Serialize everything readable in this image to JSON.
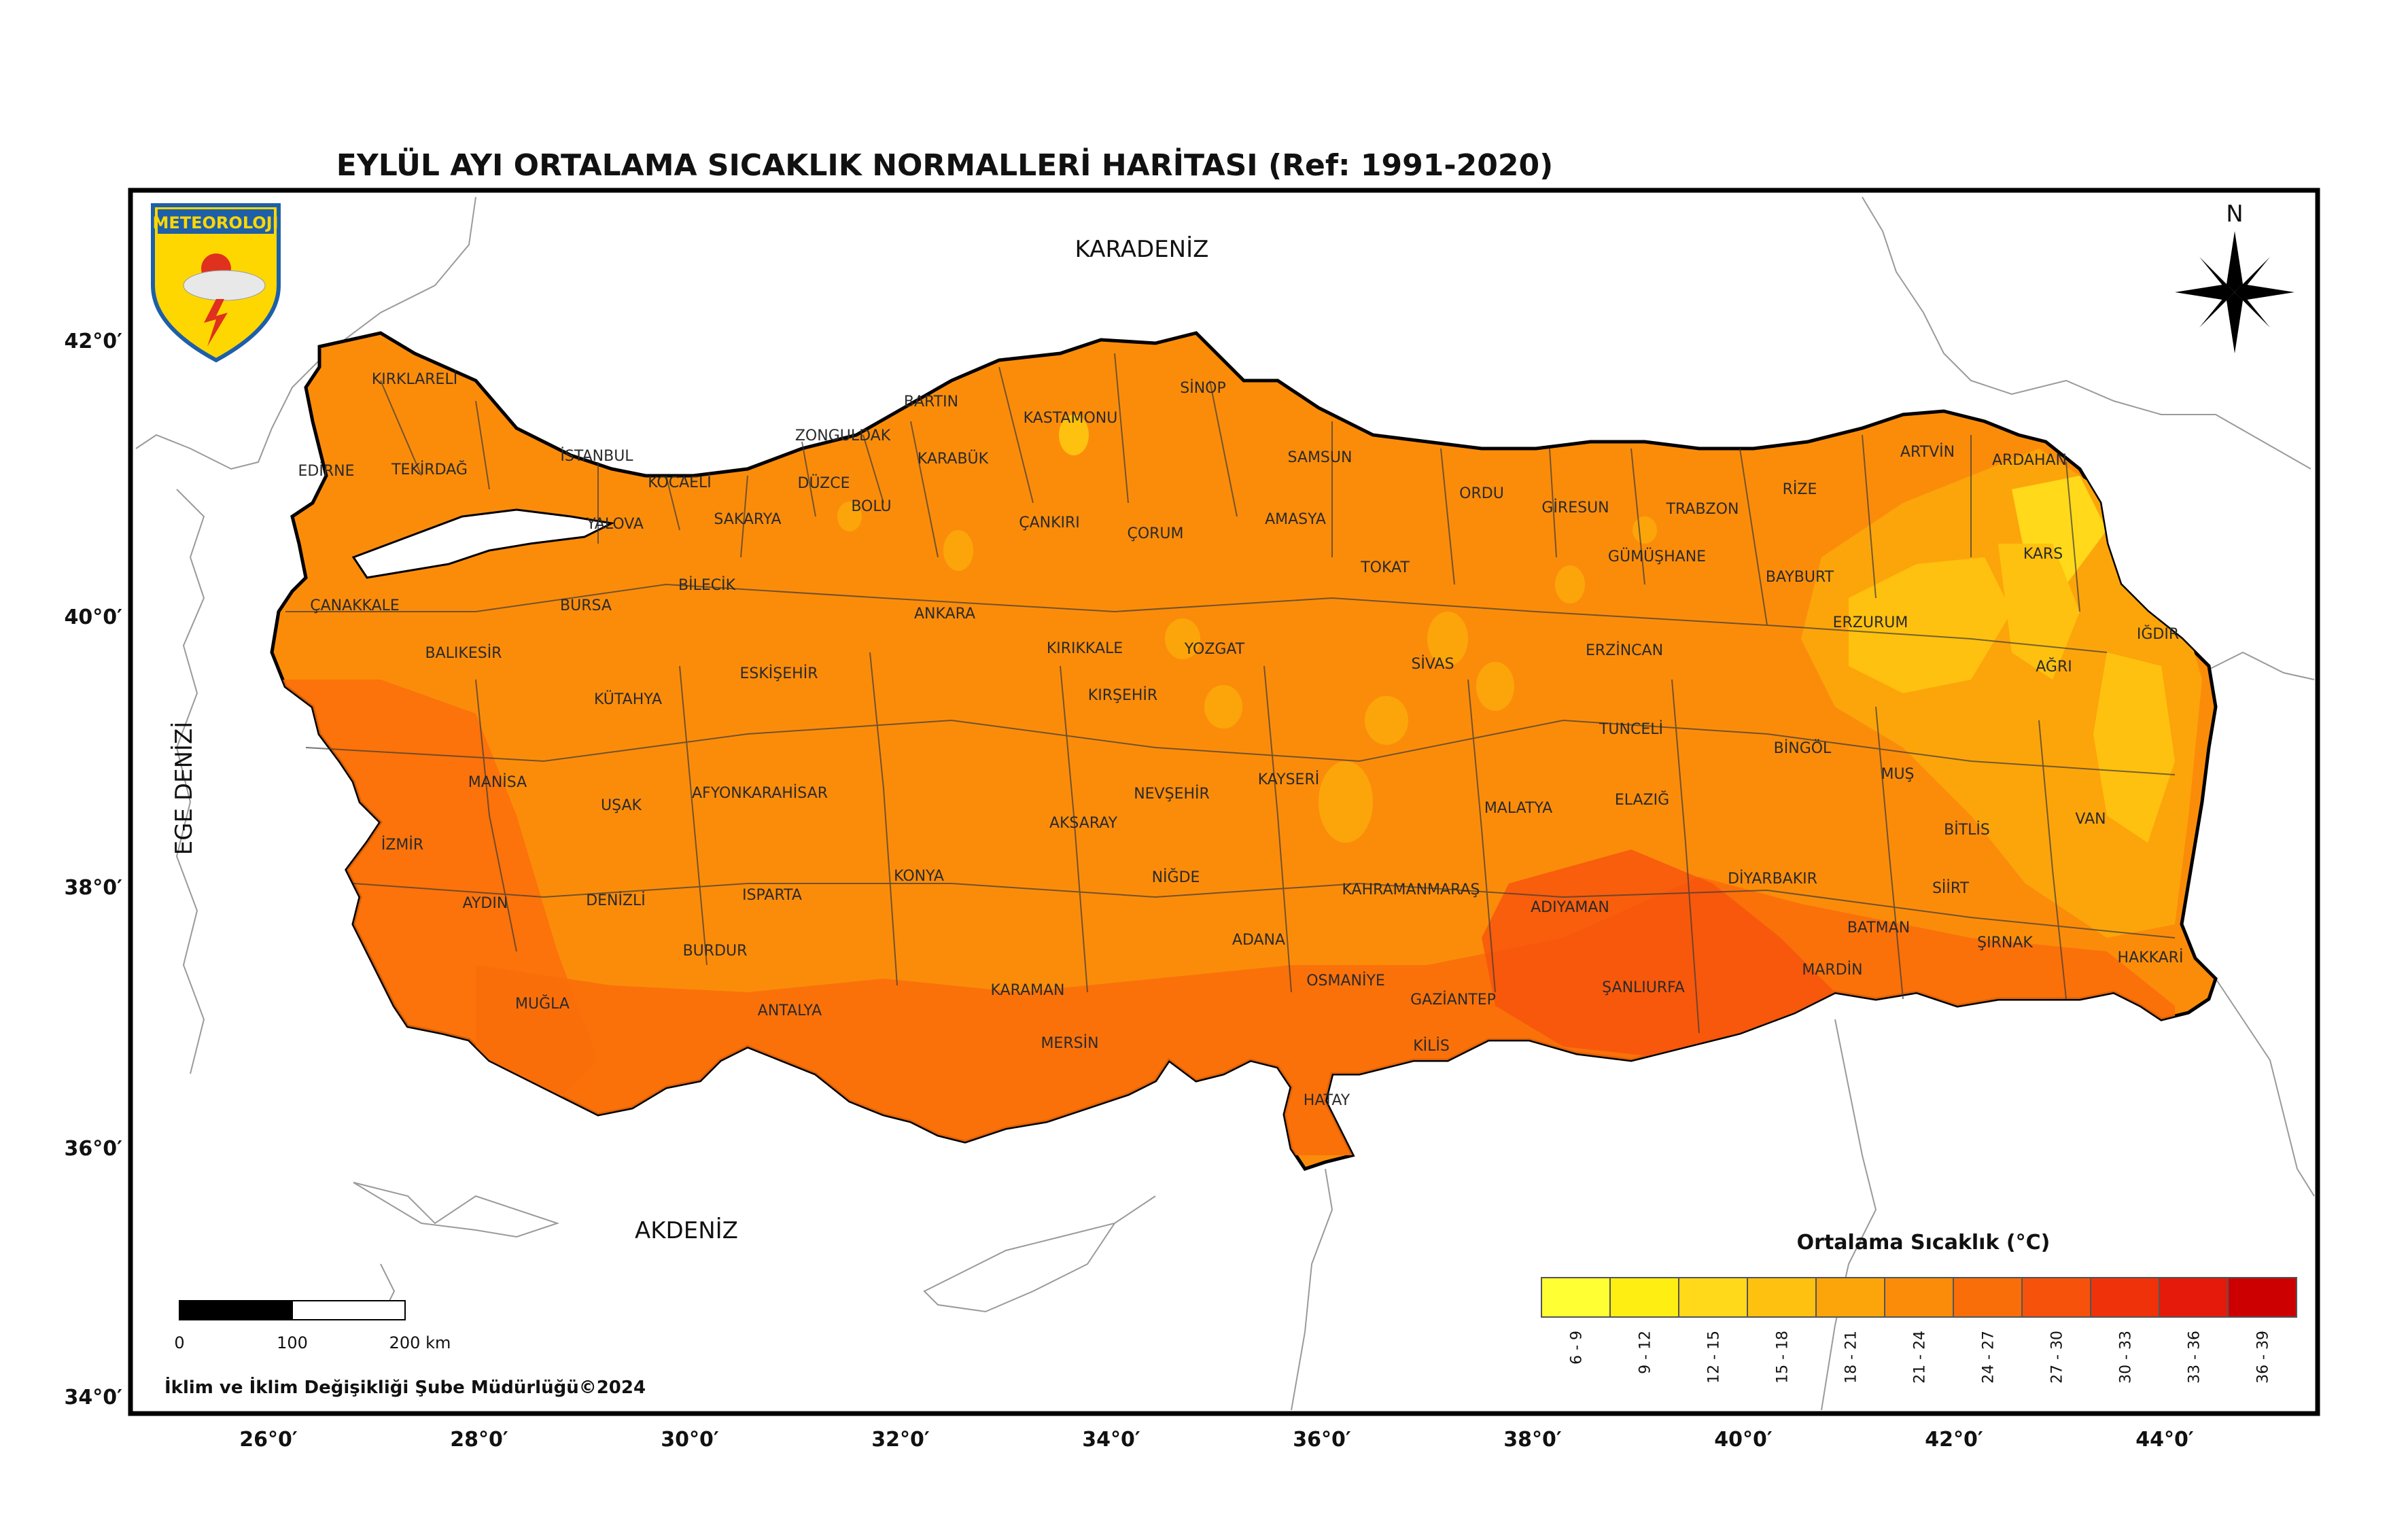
{
  "title": "EYLÜL AYI ORTALAMA SICAKLIK NORMALLERİ HARİTASI (Ref: 1991-2020)",
  "seas": {
    "black_sea": "KARADENİZ",
    "mediterranean": "AKDENİZ",
    "aegean": "EGE DENİZİ"
  },
  "logo": {
    "text": "METEOROLOJİ",
    "icon": "meteoroloji-emblem-icon"
  },
  "north_arrow": {
    "label": "N",
    "icon": "north-arrow-icon"
  },
  "scale_bar": {
    "labels": [
      "0",
      "100",
      "200 km"
    ]
  },
  "credit": "İklim ve İklim Değişikliği Şube Müdürlüğü©2024",
  "axes": {
    "lat_labels": [
      "42°0′",
      "40°0′",
      "38°0′",
      "36°0′",
      "34°0′"
    ],
    "lon_labels": [
      "26°0′",
      "28°0′",
      "30°0′",
      "32°0′",
      "34°0′",
      "36°0′",
      "38°0′",
      "40°0′",
      "42°0′",
      "44°0′"
    ]
  },
  "legend": {
    "title": "Ortalama Sıcaklık (°C)",
    "classes": [
      {
        "label": "6 - 9",
        "color": "#ffff33"
      },
      {
        "label": "9 - 12",
        "color": "#ffee11"
      },
      {
        "label": "12 - 15",
        "color": "#ffd91a"
      },
      {
        "label": "15 - 18",
        "color": "#ffc10f"
      },
      {
        "label": "18 - 21",
        "color": "#fca50a"
      },
      {
        "label": "21 - 24",
        "color": "#fb8c0a"
      },
      {
        "label": "24 - 27",
        "color": "#fa6e0a"
      },
      {
        "label": "27 - 30",
        "color": "#f7520c"
      },
      {
        "label": "30 - 33",
        "color": "#ef320a"
      },
      {
        "label": "33 - 36",
        "color": "#e61a0a"
      },
      {
        "label": "36 - 39",
        "color": "#cc0000"
      }
    ]
  },
  "provinces": [
    "KIRKLARELİ",
    "EDİRNE",
    "TEKİRDAĞ",
    "İSTANBUL",
    "KOCAELİ",
    "YALOVA",
    "SAKARYA",
    "DÜZCE",
    "BOLU",
    "ZONGULDAK",
    "BARTIN",
    "KARABÜK",
    "KASTAMONU",
    "SİNOP",
    "SAMSUN",
    "ORDU",
    "GİRESUN",
    "TRABZON",
    "RİZE",
    "ARTVİN",
    "ARDAHAN",
    "KARS",
    "IĞDIR",
    "AĞRI",
    "ERZURUM",
    "BAYBURT",
    "GÜMÜŞHANE",
    "ERZİNCAN",
    "ÇANAKKALE",
    "BALIKESİR",
    "BURSA",
    "BİLECİK",
    "ESKİŞEHİR",
    "KÜTAHYA",
    "ANKARA",
    "ÇANKIRI",
    "ÇORUM",
    "AMASYA",
    "TOKAT",
    "SİVAS",
    "YOZGAT",
    "KIRIKKALE",
    "KIRŞEHİR",
    "NEVŞEHİR",
    "KAYSERİ",
    "AKSARAY",
    "NİĞDE",
    "KONYA",
    "KARAMAN",
    "MERSİN",
    "ADANA",
    "OSMANİYE",
    "HATAY",
    "KİLİS",
    "GAZİANTEP",
    "KAHRAMANMARAŞ",
    "MALATYA",
    "ADIYAMAN",
    "ŞANLIURFA",
    "ELAZIĞ",
    "TUNCELİ",
    "BİNGÖL",
    "MUŞ",
    "BİTLİS",
    "VAN",
    "HAKKARİ",
    "ŞIRNAK",
    "SİİRT",
    "BATMAN",
    "MARDİN",
    "DİYARBAKIR",
    "MANİSA",
    "İZMİR",
    "UŞAK",
    "AFYONKARAHİSAR",
    "AYDIN",
    "DENİZLİ",
    "MUĞLA",
    "BURDUR",
    "ISPARTA",
    "ANTALYA"
  ]
}
